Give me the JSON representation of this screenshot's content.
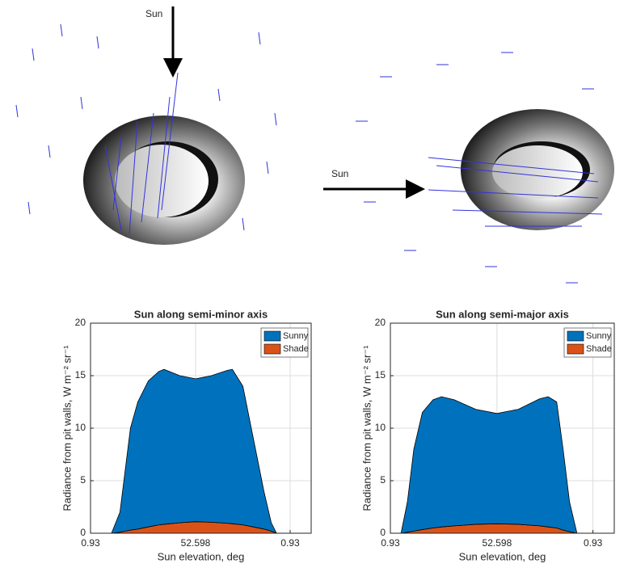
{
  "illustrations": [
    {
      "label": "Sun"
    },
    {
      "label": "Sun"
    }
  ],
  "chart_data": [
    {
      "type": "area",
      "title": "Sun along semi-minor axis",
      "xlabel": "Sun elevation, deg",
      "ylabel": "Radiance from pit walls, W m⁻² sr⁻¹",
      "x": [
        0.2,
        0.28,
        0.33,
        0.38,
        0.45,
        0.55,
        0.65,
        0.7,
        0.85,
        1.0,
        1.15,
        1.3,
        1.35,
        1.45,
        1.55,
        1.65,
        1.72,
        1.77
      ],
      "series": [
        {
          "name": "Shade",
          "color": "#d95319",
          "values": [
            0,
            0.1,
            0.2,
            0.3,
            0.4,
            0.6,
            0.8,
            0.85,
            1.0,
            1.1,
            1.05,
            0.95,
            0.9,
            0.8,
            0.6,
            0.4,
            0.2,
            0
          ]
        },
        {
          "name": "Sunny",
          "color": "#0072bd",
          "values": [
            0,
            1.9,
            5.8,
            9.7,
            12.1,
            13.9,
            14.6,
            14.75,
            14,
            13.6,
            13.95,
            14.55,
            14.7,
            13.2,
            8.4,
            3.6,
            0.8,
            0
          ]
        }
      ],
      "xlim": [
        0,
        2.1
      ],
      "xticks": [
        {
          "value": 0,
          "label": "0.93"
        },
        {
          "value": 1,
          "label": "52.598"
        },
        {
          "value": 1.9,
          "label": "0.93"
        }
      ],
      "ylim": [
        0,
        20
      ],
      "yticks": [
        0,
        5,
        10,
        15,
        20
      ],
      "grid": true,
      "legend": "top-right"
    },
    {
      "type": "area",
      "title": "Sun along semi-major axis",
      "xlabel": "Sun elevation, deg",
      "ylabel": "Radiance from pit walls, W m⁻² sr⁻¹",
      "x": [
        0.1,
        0.16,
        0.22,
        0.3,
        0.4,
        0.48,
        0.6,
        0.8,
        1.0,
        1.2,
        1.4,
        1.48,
        1.56,
        1.62,
        1.68,
        1.75
      ],
      "series": [
        {
          "name": "Shade",
          "color": "#d95319",
          "values": [
            0,
            0.1,
            0.2,
            0.35,
            0.5,
            0.6,
            0.7,
            0.85,
            0.9,
            0.85,
            0.7,
            0.6,
            0.5,
            0.3,
            0.15,
            0
          ]
        },
        {
          "name": "Sunny",
          "color": "#0072bd",
          "values": [
            0,
            2.9,
            7.8,
            11.15,
            12.2,
            12.4,
            12,
            10.95,
            10.5,
            10.95,
            12.1,
            12.4,
            12,
            7.7,
            2.85,
            0
          ]
        }
      ],
      "xlim": [
        0,
        2.1
      ],
      "xticks": [
        {
          "value": 0,
          "label": "0.93"
        },
        {
          "value": 1,
          "label": "52.598"
        },
        {
          "value": 1.9,
          "label": "0.93"
        }
      ],
      "ylim": [
        0,
        20
      ],
      "yticks": [
        0,
        5,
        10,
        15,
        20
      ],
      "grid": true,
      "legend": "top-right"
    }
  ]
}
